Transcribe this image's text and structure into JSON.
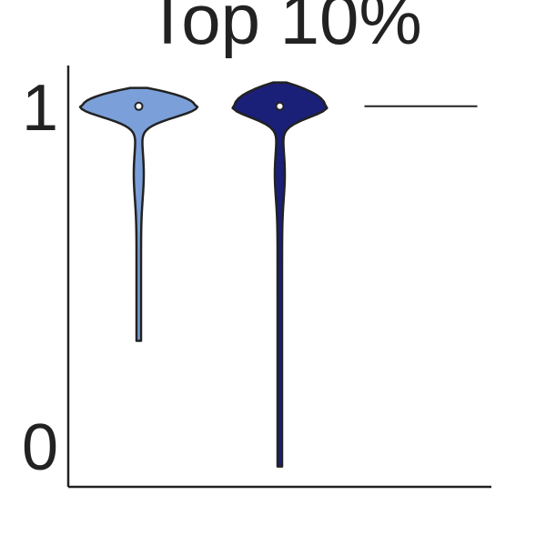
{
  "chart_data": {
    "type": "violin",
    "title": "Top 10%",
    "categories": [
      null,
      null,
      null
    ],
    "min": [
      0.31,
      -0.06,
      1
    ],
    "median": [
      1,
      1,
      1
    ],
    "max": [
      1.054,
      1.07,
      1
    ],
    "colors": [
      "#7b9fd9",
      "#1a1f78",
      "#222222"
    ],
    "ylim": [
      -0.12,
      1.12
    ],
    "yticks": [
      0,
      1
    ],
    "grid": false
  }
}
